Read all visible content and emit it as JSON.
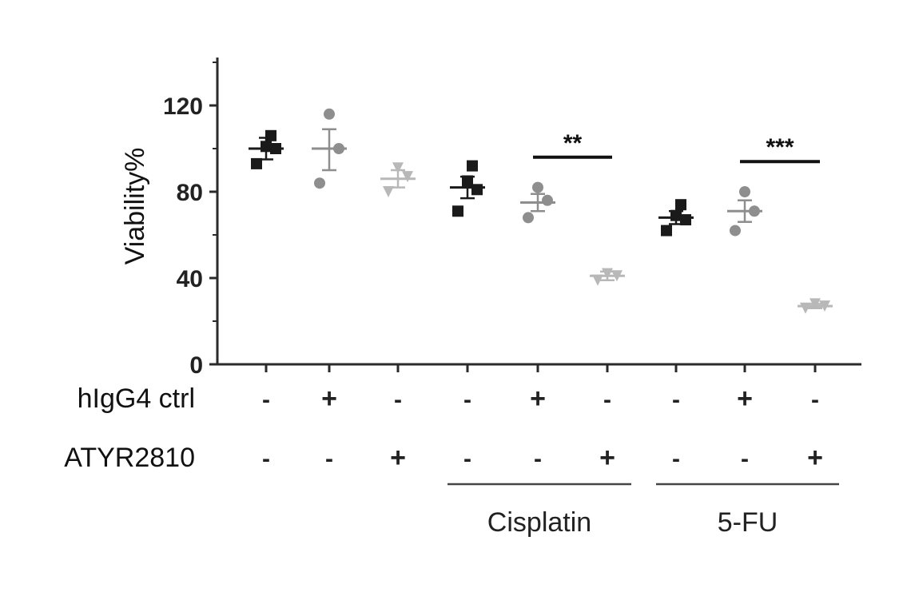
{
  "chart_data": {
    "type": "scatter",
    "ylabel": "Viability%",
    "ylim": [
      0,
      140
    ],
    "yticks": [
      "0",
      "40",
      "80",
      "120"
    ],
    "grid": false,
    "legend": "none",
    "groups": [
      {
        "points": [
          93,
          100,
          101,
          106
        ],
        "mean": 100,
        "sem_lo": 95,
        "sem_hi": 105,
        "shade": "#1a1a1a",
        "marker": "square"
      },
      {
        "points": [
          84,
          100,
          116
        ],
        "mean": 100,
        "sem_lo": 90,
        "sem_hi": 109,
        "shade": "#8e8e8e",
        "marker": "circle"
      },
      {
        "points": [
          80,
          87,
          91
        ],
        "mean": 86,
        "sem_lo": 82,
        "sem_hi": 90,
        "shade": "#b8b8b8",
        "marker": "triangle"
      },
      {
        "points": [
          71,
          81,
          85,
          92
        ],
        "mean": 82,
        "sem_lo": 77,
        "sem_hi": 87,
        "shade": "#1a1a1a",
        "marker": "square"
      },
      {
        "points": [
          68,
          76,
          82
        ],
        "mean": 75,
        "sem_lo": 71,
        "sem_hi": 79,
        "shade": "#8e8e8e",
        "marker": "circle"
      },
      {
        "points": [
          39,
          41,
          42
        ],
        "mean": 41,
        "sem_lo": 39,
        "sem_hi": 43,
        "shade": "#b8b8b8",
        "marker": "triangle"
      },
      {
        "points": [
          62,
          67,
          69,
          74
        ],
        "mean": 68,
        "sem_lo": 65,
        "sem_hi": 71,
        "shade": "#1a1a1a",
        "marker": "square"
      },
      {
        "points": [
          62,
          71,
          80
        ],
        "mean": 71,
        "sem_lo": 66,
        "sem_hi": 76,
        "shade": "#8e8e8e",
        "marker": "circle"
      },
      {
        "points": [
          26,
          27,
          28
        ],
        "mean": 27,
        "sem_lo": 26,
        "sem_hi": 28,
        "shade": "#b8b8b8",
        "marker": "triangle"
      }
    ],
    "significance": [
      {
        "from_group": 4,
        "to_group": 5,
        "label": "**",
        "value": 96
      },
      {
        "from_group": 7,
        "to_group": 8,
        "label": "***",
        "value": 94
      }
    ],
    "treatment_rows": [
      {
        "label": "hIgG4 ctrl",
        "marks": [
          "-",
          "+",
          "-",
          "-",
          "+",
          "-",
          "-",
          "+",
          "-"
        ]
      },
      {
        "label": "ATYR2810",
        "marks": [
          "-",
          "-",
          "+",
          "-",
          "-",
          "+",
          "-",
          "-",
          "+"
        ]
      }
    ],
    "drug_labels": [
      {
        "label": "Cisplatin",
        "from_group": 3,
        "to_group": 5
      },
      {
        "label": "5-FU",
        "from_group": 6,
        "to_group": 8
      }
    ],
    "colors": {
      "axis": "#2a2a2a",
      "text": "#111111",
      "dash": "#222222"
    }
  }
}
